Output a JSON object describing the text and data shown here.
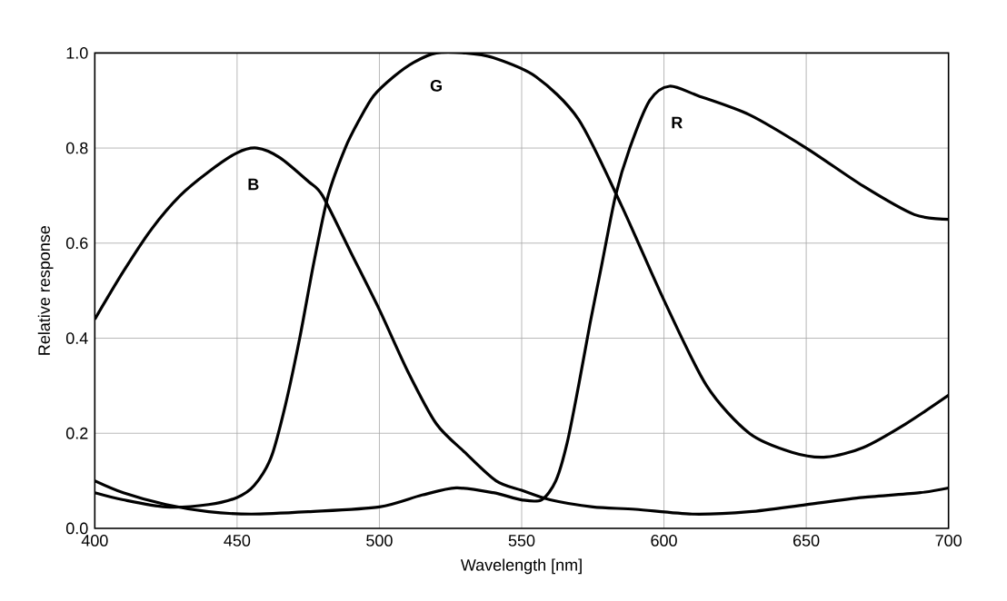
{
  "chart_data": {
    "type": "line",
    "xlabel": "Wavelength [nm]",
    "ylabel": "Relative response",
    "xlim": [
      400,
      700
    ],
    "ylim": [
      0,
      1
    ],
    "xticks": [
      400,
      450,
      500,
      550,
      600,
      650,
      700
    ],
    "yticks": [
      {
        "value": 0,
        "label": "0.0"
      },
      {
        "value": 0.2,
        "label": "0.2"
      },
      {
        "value": 0.4,
        "label": "0.4"
      },
      {
        "value": 0.6,
        "label": "0.6"
      },
      {
        "value": 0.8,
        "label": "0.8"
      },
      {
        "value": 1,
        "label": "1.0"
      }
    ],
    "grid": true,
    "marker": "none",
    "line_style": "solid",
    "series": [
      {
        "name": "B",
        "color": "#000000",
        "x": [
          400,
          410,
          420,
          430,
          440,
          450,
          457,
          465,
          475,
          480,
          490,
          500,
          510,
          520,
          530,
          541,
          550,
          560,
          575,
          590,
          610,
          630,
          650,
          670,
          690,
          700
        ],
        "values": [
          0.44,
          0.54,
          0.63,
          0.7,
          0.75,
          0.79,
          0.8,
          0.78,
          0.73,
          0.7,
          0.58,
          0.46,
          0.33,
          0.22,
          0.16,
          0.1,
          0.08,
          0.06,
          0.045,
          0.04,
          0.03,
          0.035,
          0.05,
          0.065,
          0.075,
          0.085
        ]
      },
      {
        "name": "G",
        "color": "#000000",
        "x": [
          400,
          410,
          425,
          440,
          450,
          456,
          462,
          467,
          472,
          477,
          482,
          488,
          493,
          498,
          505,
          512,
          520,
          530,
          540,
          555,
          570,
          585,
          600,
          615,
          630,
          645,
          657,
          670,
          685,
          700
        ],
        "values": [
          0.075,
          0.06,
          0.045,
          0.05,
          0.065,
          0.09,
          0.15,
          0.26,
          0.4,
          0.56,
          0.7,
          0.8,
          0.86,
          0.91,
          0.95,
          0.98,
          1.0,
          1.0,
          0.99,
          0.95,
          0.86,
          0.68,
          0.48,
          0.3,
          0.2,
          0.16,
          0.15,
          0.17,
          0.22,
          0.28
        ]
      },
      {
        "name": "R",
        "color": "#000000",
        "x": [
          400,
          410,
          425,
          440,
          455,
          475,
          500,
          515,
          527,
          540,
          550,
          557,
          562,
          566,
          570,
          574,
          578,
          583,
          588,
          595,
          602,
          612,
          630,
          650,
          670,
          688,
          700
        ],
        "values": [
          0.1,
          0.075,
          0.05,
          0.035,
          0.03,
          0.035,
          0.045,
          0.07,
          0.085,
          0.075,
          0.06,
          0.06,
          0.1,
          0.18,
          0.3,
          0.43,
          0.55,
          0.7,
          0.8,
          0.9,
          0.93,
          0.91,
          0.87,
          0.8,
          0.72,
          0.66,
          0.65
        ]
      }
    ]
  }
}
